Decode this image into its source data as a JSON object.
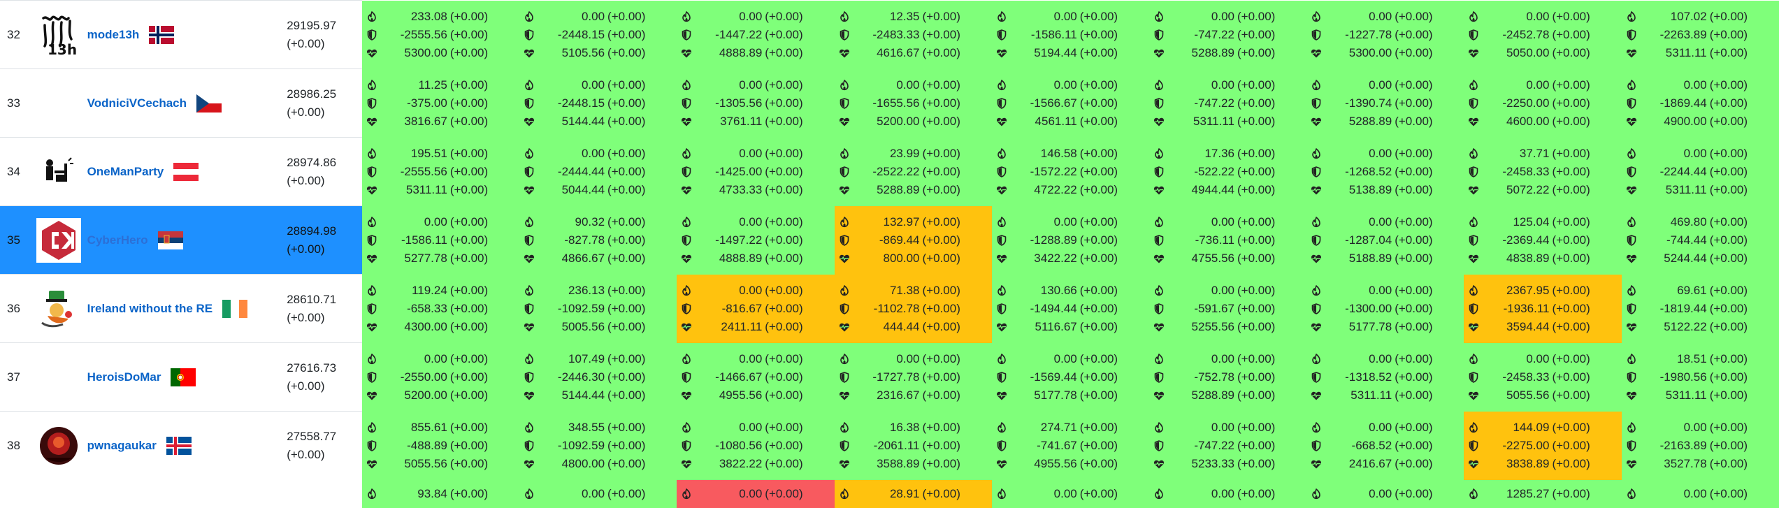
{
  "colors": {
    "ok": "#7fff7a",
    "warn": "#ffc20e",
    "down": "#f85a5f",
    "selected": "#1e90ff",
    "link": "#0b64c8"
  },
  "icons": {
    "attack": "fire-icon",
    "defense": "shield-icon",
    "sla": "heartbeat-icon"
  },
  "rows": [
    {
      "rank": "32",
      "team": "mode13h",
      "logo": "mode13h-logo",
      "flag": "norway-flag",
      "score": "29195.97",
      "score_delta": "(+0.00)",
      "services": [
        {
          "status": "ok",
          "a": [
            "233.08",
            "(+0.00)"
          ],
          "d": [
            "-2555.56",
            "(+0.00)"
          ],
          "s": [
            "5300.00",
            "(+0.00)"
          ]
        },
        {
          "status": "ok",
          "a": [
            "0.00",
            "(+0.00)"
          ],
          "d": [
            "-2448.15",
            "(+0.00)"
          ],
          "s": [
            "5105.56",
            "(+0.00)"
          ]
        },
        {
          "status": "ok",
          "a": [
            "0.00",
            "(+0.00)"
          ],
          "d": [
            "-1447.22",
            "(+0.00)"
          ],
          "s": [
            "4888.89",
            "(+0.00)"
          ]
        },
        {
          "status": "ok",
          "a": [
            "12.35",
            "(+0.00)"
          ],
          "d": [
            "-2483.33",
            "(+0.00)"
          ],
          "s": [
            "4616.67",
            "(+0.00)"
          ]
        },
        {
          "status": "ok",
          "a": [
            "0.00",
            "(+0.00)"
          ],
          "d": [
            "-1586.11",
            "(+0.00)"
          ],
          "s": [
            "5194.44",
            "(+0.00)"
          ]
        },
        {
          "status": "ok",
          "a": [
            "0.00",
            "(+0.00)"
          ],
          "d": [
            "-747.22",
            "(+0.00)"
          ],
          "s": [
            "5288.89",
            "(+0.00)"
          ]
        },
        {
          "status": "ok",
          "a": [
            "0.00",
            "(+0.00)"
          ],
          "d": [
            "-1227.78",
            "(+0.00)"
          ],
          "s": [
            "5300.00",
            "(+0.00)"
          ]
        },
        {
          "status": "ok",
          "a": [
            "0.00",
            "(+0.00)"
          ],
          "d": [
            "-2452.78",
            "(+0.00)"
          ],
          "s": [
            "5050.00",
            "(+0.00)"
          ]
        },
        {
          "status": "ok",
          "a": [
            "107.02",
            "(+0.00)"
          ],
          "d": [
            "-2263.89",
            "(+0.00)"
          ],
          "s": [
            "5311.11",
            "(+0.00)"
          ]
        }
      ]
    },
    {
      "rank": "33",
      "team": "VodniciVCechach",
      "logo": "",
      "flag": "czech-flag",
      "score": "28986.25",
      "score_delta": "(+0.00)",
      "services": [
        {
          "status": "ok",
          "a": [
            "11.25",
            "(+0.00)"
          ],
          "d": [
            "-375.00",
            "(+0.00)"
          ],
          "s": [
            "3816.67",
            "(+0.00)"
          ]
        },
        {
          "status": "ok",
          "a": [
            "0.00",
            "(+0.00)"
          ],
          "d": [
            "-2448.15",
            "(+0.00)"
          ],
          "s": [
            "5144.44",
            "(+0.00)"
          ]
        },
        {
          "status": "ok",
          "a": [
            "0.00",
            "(+0.00)"
          ],
          "d": [
            "-1305.56",
            "(+0.00)"
          ],
          "s": [
            "3761.11",
            "(+0.00)"
          ]
        },
        {
          "status": "ok",
          "a": [
            "0.00",
            "(+0.00)"
          ],
          "d": [
            "-1655.56",
            "(+0.00)"
          ],
          "s": [
            "5200.00",
            "(+0.00)"
          ]
        },
        {
          "status": "ok",
          "a": [
            "0.00",
            "(+0.00)"
          ],
          "d": [
            "-1566.67",
            "(+0.00)"
          ],
          "s": [
            "4561.11",
            "(+0.00)"
          ]
        },
        {
          "status": "ok",
          "a": [
            "0.00",
            "(+0.00)"
          ],
          "d": [
            "-747.22",
            "(+0.00)"
          ],
          "s": [
            "5311.11",
            "(+0.00)"
          ]
        },
        {
          "status": "ok",
          "a": [
            "0.00",
            "(+0.00)"
          ],
          "d": [
            "-1390.74",
            "(+0.00)"
          ],
          "s": [
            "5288.89",
            "(+0.00)"
          ]
        },
        {
          "status": "ok",
          "a": [
            "0.00",
            "(+0.00)"
          ],
          "d": [
            "-2250.00",
            "(+0.00)"
          ],
          "s": [
            "4600.00",
            "(+0.00)"
          ]
        },
        {
          "status": "ok",
          "a": [
            "0.00",
            "(+0.00)"
          ],
          "d": [
            "-1869.44",
            "(+0.00)"
          ],
          "s": [
            "4900.00",
            "(+0.00)"
          ]
        }
      ]
    },
    {
      "rank": "34",
      "team": "OneManParty",
      "logo": "onemanparty-logo",
      "flag": "austria-flag",
      "score": "28974.86",
      "score_delta": "(+0.00)",
      "services": [
        {
          "status": "ok",
          "a": [
            "195.51",
            "(+0.00)"
          ],
          "d": [
            "-2555.56",
            "(+0.00)"
          ],
          "s": [
            "5311.11",
            "(+0.00)"
          ]
        },
        {
          "status": "ok",
          "a": [
            "0.00",
            "(+0.00)"
          ],
          "d": [
            "-2444.44",
            "(+0.00)"
          ],
          "s": [
            "5044.44",
            "(+0.00)"
          ]
        },
        {
          "status": "ok",
          "a": [
            "0.00",
            "(+0.00)"
          ],
          "d": [
            "-1425.00",
            "(+0.00)"
          ],
          "s": [
            "4733.33",
            "(+0.00)"
          ]
        },
        {
          "status": "ok",
          "a": [
            "23.99",
            "(+0.00)"
          ],
          "d": [
            "-2522.22",
            "(+0.00)"
          ],
          "s": [
            "5288.89",
            "(+0.00)"
          ]
        },
        {
          "status": "ok",
          "a": [
            "146.58",
            "(+0.00)"
          ],
          "d": [
            "-1572.22",
            "(+0.00)"
          ],
          "s": [
            "4722.22",
            "(+0.00)"
          ]
        },
        {
          "status": "ok",
          "a": [
            "17.36",
            "(+0.00)"
          ],
          "d": [
            "-522.22",
            "(+0.00)"
          ],
          "s": [
            "4944.44",
            "(+0.00)"
          ]
        },
        {
          "status": "ok",
          "a": [
            "0.00",
            "(+0.00)"
          ],
          "d": [
            "-1268.52",
            "(+0.00)"
          ],
          "s": [
            "5138.89",
            "(+0.00)"
          ]
        },
        {
          "status": "ok",
          "a": [
            "37.71",
            "(+0.00)"
          ],
          "d": [
            "-2458.33",
            "(+0.00)"
          ],
          "s": [
            "5072.22",
            "(+0.00)"
          ]
        },
        {
          "status": "ok",
          "a": [
            "0.00",
            "(+0.00)"
          ],
          "d": [
            "-2244.44",
            "(+0.00)"
          ],
          "s": [
            "5311.11",
            "(+0.00)"
          ]
        }
      ]
    },
    {
      "rank": "35",
      "team": "CyberHero",
      "logo": "cyberhero-logo",
      "flag": "serbia-flag",
      "score": "28894.98",
      "score_delta": "(+0.00)",
      "selected": true,
      "services": [
        {
          "status": "ok",
          "a": [
            "0.00",
            "(+0.00)"
          ],
          "d": [
            "-1586.11",
            "(+0.00)"
          ],
          "s": [
            "5277.78",
            "(+0.00)"
          ]
        },
        {
          "status": "ok",
          "a": [
            "90.32",
            "(+0.00)"
          ],
          "d": [
            "-827.78",
            "(+0.00)"
          ],
          "s": [
            "4866.67",
            "(+0.00)"
          ]
        },
        {
          "status": "ok",
          "a": [
            "0.00",
            "(+0.00)"
          ],
          "d": [
            "-1497.22",
            "(+0.00)"
          ],
          "s": [
            "4888.89",
            "(+0.00)"
          ]
        },
        {
          "status": "warn",
          "a": [
            "132.97",
            "(+0.00)"
          ],
          "d": [
            "-869.44",
            "(+0.00)"
          ],
          "s": [
            "800.00",
            "(+0.00)"
          ]
        },
        {
          "status": "ok",
          "a": [
            "0.00",
            "(+0.00)"
          ],
          "d": [
            "-1288.89",
            "(+0.00)"
          ],
          "s": [
            "3422.22",
            "(+0.00)"
          ]
        },
        {
          "status": "ok",
          "a": [
            "0.00",
            "(+0.00)"
          ],
          "d": [
            "-736.11",
            "(+0.00)"
          ],
          "s": [
            "4755.56",
            "(+0.00)"
          ]
        },
        {
          "status": "ok",
          "a": [
            "0.00",
            "(+0.00)"
          ],
          "d": [
            "-1287.04",
            "(+0.00)"
          ],
          "s": [
            "5188.89",
            "(+0.00)"
          ]
        },
        {
          "status": "ok",
          "a": [
            "125.04",
            "(+0.00)"
          ],
          "d": [
            "-2369.44",
            "(+0.00)"
          ],
          "s": [
            "4838.89",
            "(+0.00)"
          ]
        },
        {
          "status": "ok",
          "a": [
            "469.80",
            "(+0.00)"
          ],
          "d": [
            "-744.44",
            "(+0.00)"
          ],
          "s": [
            "5244.44",
            "(+0.00)"
          ]
        }
      ]
    },
    {
      "rank": "36",
      "team": "Ireland without the RE",
      "logo": "ireland-logo",
      "flag": "ireland-flag",
      "score": "28610.71",
      "score_delta": "(+0.00)",
      "services": [
        {
          "status": "ok",
          "a": [
            "119.24",
            "(+0.00)"
          ],
          "d": [
            "-658.33",
            "(+0.00)"
          ],
          "s": [
            "4300.00",
            "(+0.00)"
          ]
        },
        {
          "status": "ok",
          "a": [
            "236.13",
            "(+0.00)"
          ],
          "d": [
            "-1092.59",
            "(+0.00)"
          ],
          "s": [
            "5005.56",
            "(+0.00)"
          ]
        },
        {
          "status": "warn",
          "a": [
            "0.00",
            "(+0.00)"
          ],
          "d": [
            "-816.67",
            "(+0.00)"
          ],
          "s": [
            "2411.11",
            "(+0.00)"
          ]
        },
        {
          "status": "warn",
          "a": [
            "71.38",
            "(+0.00)"
          ],
          "d": [
            "-1102.78",
            "(+0.00)"
          ],
          "s": [
            "444.44",
            "(+0.00)"
          ]
        },
        {
          "status": "ok",
          "a": [
            "130.66",
            "(+0.00)"
          ],
          "d": [
            "-1494.44",
            "(+0.00)"
          ],
          "s": [
            "5116.67",
            "(+0.00)"
          ]
        },
        {
          "status": "ok",
          "a": [
            "0.00",
            "(+0.00)"
          ],
          "d": [
            "-591.67",
            "(+0.00)"
          ],
          "s": [
            "5255.56",
            "(+0.00)"
          ]
        },
        {
          "status": "ok",
          "a": [
            "0.00",
            "(+0.00)"
          ],
          "d": [
            "-1300.00",
            "(+0.00)"
          ],
          "s": [
            "5177.78",
            "(+0.00)"
          ]
        },
        {
          "status": "warn",
          "a": [
            "2367.95",
            "(+0.00)"
          ],
          "d": [
            "-1936.11",
            "(+0.00)"
          ],
          "s": [
            "3594.44",
            "(+0.00)"
          ]
        },
        {
          "status": "ok",
          "a": [
            "69.61",
            "(+0.00)"
          ],
          "d": [
            "-1819.44",
            "(+0.00)"
          ],
          "s": [
            "5122.22",
            "(+0.00)"
          ]
        }
      ]
    },
    {
      "rank": "37",
      "team": "HeroisDoMar",
      "logo": "",
      "flag": "portugal-flag",
      "score": "27616.73",
      "score_delta": "(+0.00)",
      "services": [
        {
          "status": "ok",
          "a": [
            "0.00",
            "(+0.00)"
          ],
          "d": [
            "-2550.00",
            "(+0.00)"
          ],
          "s": [
            "5200.00",
            "(+0.00)"
          ]
        },
        {
          "status": "ok",
          "a": [
            "107.49",
            "(+0.00)"
          ],
          "d": [
            "-2446.30",
            "(+0.00)"
          ],
          "s": [
            "5144.44",
            "(+0.00)"
          ]
        },
        {
          "status": "ok",
          "a": [
            "0.00",
            "(+0.00)"
          ],
          "d": [
            "-1466.67",
            "(+0.00)"
          ],
          "s": [
            "4955.56",
            "(+0.00)"
          ]
        },
        {
          "status": "ok",
          "a": [
            "0.00",
            "(+0.00)"
          ],
          "d": [
            "-1727.78",
            "(+0.00)"
          ],
          "s": [
            "2316.67",
            "(+0.00)"
          ]
        },
        {
          "status": "ok",
          "a": [
            "0.00",
            "(+0.00)"
          ],
          "d": [
            "-1569.44",
            "(+0.00)"
          ],
          "s": [
            "5177.78",
            "(+0.00)"
          ]
        },
        {
          "status": "ok",
          "a": [
            "0.00",
            "(+0.00)"
          ],
          "d": [
            "-752.78",
            "(+0.00)"
          ],
          "s": [
            "5288.89",
            "(+0.00)"
          ]
        },
        {
          "status": "ok",
          "a": [
            "0.00",
            "(+0.00)"
          ],
          "d": [
            "-1318.52",
            "(+0.00)"
          ],
          "s": [
            "5311.11",
            "(+0.00)"
          ]
        },
        {
          "status": "ok",
          "a": [
            "0.00",
            "(+0.00)"
          ],
          "d": [
            "-2458.33",
            "(+0.00)"
          ],
          "s": [
            "5055.56",
            "(+0.00)"
          ]
        },
        {
          "status": "ok",
          "a": [
            "18.51",
            "(+0.00)"
          ],
          "d": [
            "-1980.56",
            "(+0.00)"
          ],
          "s": [
            "5311.11",
            "(+0.00)"
          ]
        }
      ]
    },
    {
      "rank": "38",
      "team": "pwnagaukar",
      "logo": "pwnagaukar-logo",
      "flag": "iceland-flag",
      "score": "27558.77",
      "score_delta": "(+0.00)",
      "services": [
        {
          "status": "ok",
          "a": [
            "855.61",
            "(+0.00)"
          ],
          "d": [
            "-488.89",
            "(+0.00)"
          ],
          "s": [
            "5055.56",
            "(+0.00)"
          ]
        },
        {
          "status": "ok",
          "a": [
            "348.55",
            "(+0.00)"
          ],
          "d": [
            "-1092.59",
            "(+0.00)"
          ],
          "s": [
            "4800.00",
            "(+0.00)"
          ]
        },
        {
          "status": "ok",
          "a": [
            "0.00",
            "(+0.00)"
          ],
          "d": [
            "-1080.56",
            "(+0.00)"
          ],
          "s": [
            "3822.22",
            "(+0.00)"
          ]
        },
        {
          "status": "ok",
          "a": [
            "16.38",
            "(+0.00)"
          ],
          "d": [
            "-2061.11",
            "(+0.00)"
          ],
          "s": [
            "3588.89",
            "(+0.00)"
          ]
        },
        {
          "status": "ok",
          "a": [
            "274.71",
            "(+0.00)"
          ],
          "d": [
            "-741.67",
            "(+0.00)"
          ],
          "s": [
            "4955.56",
            "(+0.00)"
          ]
        },
        {
          "status": "ok",
          "a": [
            "0.00",
            "(+0.00)"
          ],
          "d": [
            "-747.22",
            "(+0.00)"
          ],
          "s": [
            "5233.33",
            "(+0.00)"
          ]
        },
        {
          "status": "ok",
          "a": [
            "0.00",
            "(+0.00)"
          ],
          "d": [
            "-668.52",
            "(+0.00)"
          ],
          "s": [
            "2416.67",
            "(+0.00)"
          ]
        },
        {
          "status": "warn",
          "a": [
            "144.09",
            "(+0.00)"
          ],
          "d": [
            "-2275.00",
            "(+0.00)"
          ],
          "s": [
            "3838.89",
            "(+0.00)"
          ]
        },
        {
          "status": "ok",
          "a": [
            "0.00",
            "(+0.00)"
          ],
          "d": [
            "-2163.89",
            "(+0.00)"
          ],
          "s": [
            "3527.78",
            "(+0.00)"
          ]
        }
      ]
    }
  ],
  "partial_row": {
    "services": [
      {
        "status": "ok",
        "a": [
          "93.84",
          "(+0.00)"
        ]
      },
      {
        "status": "ok",
        "a": [
          "0.00",
          "(+0.00)"
        ]
      },
      {
        "status": "down",
        "a": [
          "0.00",
          "(+0.00)"
        ]
      },
      {
        "status": "warn",
        "a": [
          "28.91",
          "(+0.00)"
        ]
      },
      {
        "status": "ok",
        "a": [
          "0.00",
          "(+0.00)"
        ]
      },
      {
        "status": "ok",
        "a": [
          "0.00",
          "(+0.00)"
        ]
      },
      {
        "status": "ok",
        "a": [
          "0.00",
          "(+0.00)"
        ]
      },
      {
        "status": "ok",
        "a": [
          "1285.27",
          "(+0.00)"
        ]
      },
      {
        "status": "ok",
        "a": [
          "0.00",
          "(+0.00)"
        ]
      }
    ]
  }
}
